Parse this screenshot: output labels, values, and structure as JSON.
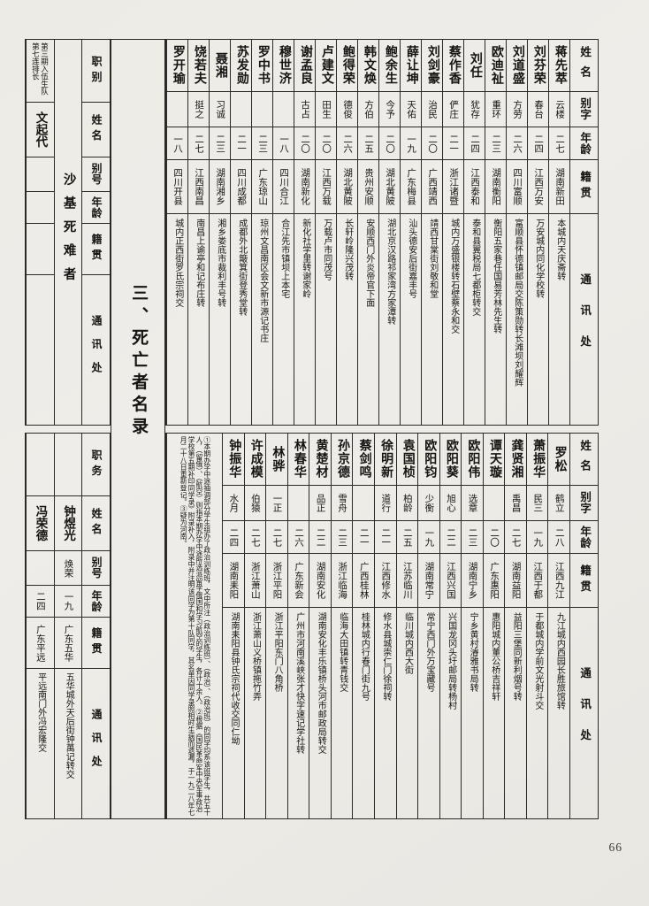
{
  "page": {
    "title": "三、死亡者名录",
    "number": "66"
  },
  "sidebar": {
    "top": {
      "headers": [
        "职别",
        "姓名",
        "别号",
        "年龄",
        "籍贯",
        "通讯处"
      ],
      "section_label": "沙基死难者",
      "entry": {
        "role": "第三期入伍生队第七连排长",
        "name": "文起代",
        "alias": "",
        "age": "",
        "native": "",
        "address": ""
      }
    },
    "bottom": {
      "headers": [
        "职务",
        "姓名",
        "别号",
        "年龄",
        "籍贯",
        "通讯处"
      ],
      "entries": [
        {
          "role": "",
          "name": "钟煜光",
          "alias": "焕荣",
          "age": "一九",
          "native": "广东五华",
          "address": "五华城外天后街钟萬记转交"
        },
        {
          "role": "",
          "name": "冯荣德",
          "alias": "",
          "age": "二四",
          "native": "广东平远",
          "address": "平远南门外冯宏隆交"
        }
      ]
    }
  },
  "top_table": {
    "headers": {
      "name": "姓名",
      "alias": "别字",
      "age": "年龄",
      "native": "籍贯",
      "address": "通讯处"
    },
    "people": [
      {
        "name": "蒋先萃",
        "alias": "云楼",
        "age": "二七",
        "native": "湖南新田",
        "address": "本城内天庆斋转"
      },
      {
        "name": "刘芬荣",
        "alias": "春台",
        "age": "二四",
        "native": "江西万安",
        "address": "万安城内同化学校转"
      },
      {
        "name": "刘道盛",
        "alias": "方劳",
        "age": "二六",
        "native": "四川富顺",
        "address": "富顺县怀德镇邮局交陈策勋转长滩坝刘耀辉"
      },
      {
        "name": "欧迪祉",
        "alias": "重环",
        "age": "二三",
        "native": "湖南衡阳",
        "address": "衡阳五家巷任国易芳林先生转"
      },
      {
        "name": "刘任",
        "alias": "犹存",
        "age": "二四",
        "native": "江西泰和",
        "address": "泰和县翼税局七都柜转交"
      },
      {
        "name": "蔡作香",
        "alias": "俨庄",
        "age": "二一",
        "native": "浙江诸暨",
        "address": "城内万盛银楼转石壁蔡永和交"
      },
      {
        "name": "刘剑豪",
        "alias": "治民",
        "age": "二〇",
        "native": "广西靖西",
        "address": "靖西甘棠街刘敬和堂"
      },
      {
        "name": "薛让坤",
        "alias": "天佑",
        "age": "一九",
        "native": "广东梅县",
        "address": "汕头德安后街嘉丰号"
      },
      {
        "name": "鲍余生",
        "alias": "今予",
        "age": "二〇",
        "native": "湖北黄陂",
        "address": "湖北京汉路祁家湾方家潭转"
      },
      {
        "name": "韩文焕",
        "alias": "方伯",
        "age": "二五",
        "native": "贵州安顺",
        "address": "安顺西门外炎帝官下面"
      },
      {
        "name": "鲍得荣",
        "alias": "德俊",
        "age": "二六",
        "native": "湖北黄陂",
        "address": "长轩岭隆兴茂转"
      },
      {
        "name": "卢建文",
        "alias": "田生",
        "age": "二〇",
        "native": "江西万载",
        "address": "万载卢市同茂号"
      },
      {
        "name": "谢孟良",
        "alias": "古占",
        "age": "二〇",
        "native": "湖南新化",
        "address": "新化社学里转谢家岭"
      },
      {
        "name": "穆世济",
        "alias": "",
        "age": "一八",
        "native": "四川合江",
        "address": "合江先市镇坝上本宅"
      },
      {
        "name": "罗中书",
        "alias": "",
        "age": "二三",
        "native": "广东琼山",
        "address": "琼州文昌南区会文新市源记书庄"
      },
      {
        "name": "苏发勋",
        "alias": "",
        "age": "二一",
        "native": "四川成都",
        "address": "成都外北簸箕街登秀堂转"
      },
      {
        "name": "聂湘",
        "alias": "习诚",
        "age": "二三",
        "native": "湖南湘乡",
        "address": "湘乡娄底市裁利丰号转"
      },
      {
        "name": "饶若夫",
        "alias": "挺之",
        "age": "二七",
        "native": "江西南昌",
        "address": "南昌上谕亭和记布庄转"
      },
      {
        "name": "罗开瑜",
        "alias": "",
        "age": "一八",
        "native": "四川开县",
        "address": "城内正西街罗氏宗祠交"
      }
    ]
  },
  "bottom_table": {
    "headers": {
      "name": "姓名",
      "alias": "别字",
      "age": "年龄",
      "native": "籍贯",
      "address": "通讯处"
    },
    "people": [
      {
        "name": "罗松",
        "alias": "鹤立",
        "age": "二八",
        "native": "江西九江",
        "address": "九江城内西园长胜旅馆转"
      },
      {
        "name": "萧振华",
        "alias": "民三",
        "age": "一九",
        "native": "江西于都",
        "address": "于都城内学前文光射斗交"
      },
      {
        "name": "龚贤湘",
        "alias": "禹昌",
        "age": "二七",
        "native": "湖南益阳",
        "address": "益阳三堡同新利烟号转"
      },
      {
        "name": "谭天璇",
        "alias": "",
        "age": "二〇",
        "native": "广东惠阳",
        "address": "惠阳城内董公桥吉祥轩"
      },
      {
        "name": "欧阳伟",
        "alias": "选章",
        "age": "二三",
        "native": "湖南宁乡",
        "address": "宁乡黄村濬雅书局转"
      },
      {
        "name": "欧阳葵",
        "alias": "旭心",
        "age": "二二",
        "native": "江西兴国",
        "address": "兴国龙冈头圩邮局转杨村"
      },
      {
        "name": "欧阳钧",
        "alias": "少衡",
        "age": "一九",
        "native": "湖南常宁",
        "address": "常宁西门外万宝藏号"
      },
      {
        "name": "袁国桢",
        "alias": "柏龄",
        "age": "二五",
        "native": "江苏临川",
        "address": "临川城内西大街"
      },
      {
        "name": "徐明新",
        "alias": "道行",
        "age": "二一",
        "native": "江西修水",
        "address": "修水县城崇仁门徐祠转"
      },
      {
        "name": "蔡剑鸣",
        "alias": "",
        "age": "二一",
        "native": "广西桂林",
        "address": "桂林城内行春门街九号"
      },
      {
        "name": "孙京德",
        "alias": "雪舟",
        "age": "二三",
        "native": "浙江临海",
        "address": "临海大田镇转青钱交"
      },
      {
        "name": "黄楚材",
        "alias": "品正",
        "age": "二二",
        "native": "湖南安化",
        "address": "湖南安化丰乐镇桥头河市邮政局转交"
      },
      {
        "name": "林春华",
        "alias": "",
        "age": "二六",
        "native": "广东新会",
        "address": "广州市河南溪峡张才快字速记学社转"
      },
      {
        "name": "林骅",
        "alias": "一正",
        "age": "二七",
        "native": "浙江平阳",
        "address": "浙江平阳东门八角桥"
      },
      {
        "name": "许成模",
        "alias": "伯猿",
        "age": "二七",
        "native": "浙江萧山",
        "address": "浙江萧山义桥镇拖竹弄"
      },
      {
        "name": "钟振华",
        "alias": "水月",
        "age": "二四",
        "native": "湖南耒阳",
        "address": "湖南耒阳县钟氏宗祠代收交同仁坳"
      }
    ],
    "footnotes": [
      "①本期办学中途抽调部分学生组办了政治训练班，文中所注（政治训练班）、（政治）、（政治班）的同学均系该班学生，共五十人，（留俄）、（航空）则指本期办学中途所选派留学俄国和学习航空的学生，各计十余人。",
      "②根据《国民革命军中央军事政治学校第五期补印同学录》附录补入，附录中并注明该同学为第十队同学，其名单因同学录照相时生病而遗漏，于一九二八年七月二十八日重新登记。",
      "③疑为河南。"
    ]
  }
}
